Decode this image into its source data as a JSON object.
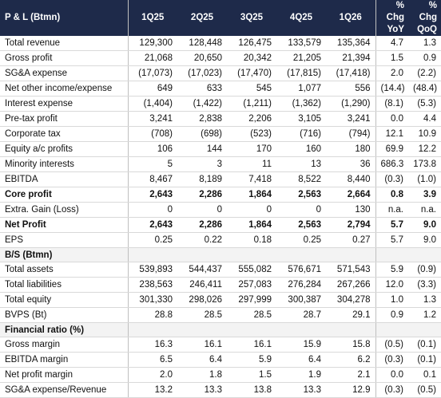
{
  "pl": {
    "title": "P & L (Btmn)",
    "columns": [
      "1Q25",
      "2Q25",
      "3Q25",
      "4Q25",
      "1Q26",
      "% Chg\nYoY",
      "% Chg\nQoQ"
    ],
    "rows": [
      {
        "label": "Total revenue",
        "values": [
          "129,300",
          "128,448",
          "126,475",
          "133,579",
          "135,364",
          "4.7",
          "1.3"
        ]
      },
      {
        "label": "Gross profit",
        "values": [
          "21,068",
          "20,650",
          "20,342",
          "21,205",
          "21,394",
          "1.5",
          "0.9"
        ]
      },
      {
        "label": "SG&A expense",
        "values": [
          "(17,073)",
          "(17,023)",
          "(17,470)",
          "(17,815)",
          "(17,418)",
          "2.0",
          "(2.2)"
        ]
      },
      {
        "label": "Net other income/expense",
        "values": [
          "649",
          "633",
          "545",
          "1,077",
          "556",
          "(14.4)",
          "(48.4)"
        ]
      },
      {
        "label": "Interest expense",
        "values": [
          "(1,404)",
          "(1,422)",
          "(1,211)",
          "(1,362)",
          "(1,290)",
          "(8.1)",
          "(5.3)"
        ]
      },
      {
        "label": "Pre-tax profit",
        "values": [
          "3,241",
          "2,838",
          "2,206",
          "3,105",
          "3,241",
          "0.0",
          "4.4"
        ]
      },
      {
        "label": "Corporate tax",
        "values": [
          "(708)",
          "(698)",
          "(523)",
          "(716)",
          "(794)",
          "12.1",
          "10.9"
        ]
      },
      {
        "label": "Equity a/c profits",
        "values": [
          "106",
          "144",
          "170",
          "160",
          "180",
          "69.9",
          "12.2"
        ]
      },
      {
        "label": "Minority interests",
        "values": [
          "5",
          "3",
          "11",
          "13",
          "36",
          "686.3",
          "173.8"
        ]
      },
      {
        "label": "EBITDA",
        "values": [
          "8,467",
          "8,189",
          "7,418",
          "8,522",
          "8,440",
          "(0.3)",
          "(1.0)"
        ]
      },
      {
        "label": "Core profit",
        "bold": true,
        "values": [
          "2,643",
          "2,286",
          "1,864",
          "2,563",
          "2,664",
          "0.8",
          "3.9"
        ]
      },
      {
        "label": "Extra. Gain (Loss)",
        "values": [
          "0",
          "0",
          "0",
          "0",
          "130",
          "n.a.",
          "n.a."
        ]
      },
      {
        "label": "Net Profit",
        "bold": true,
        "values": [
          "2,643",
          "2,286",
          "1,864",
          "2,563",
          "2,794",
          "5.7",
          "9.0"
        ]
      },
      {
        "label": "EPS",
        "values": [
          "0.25",
          "0.22",
          "0.18",
          "0.25",
          "0.27",
          "5.7",
          "9.0"
        ]
      }
    ]
  },
  "bs": {
    "title": "B/S (Btmn)",
    "rows": [
      {
        "label": "Total assets",
        "values": [
          "539,893",
          "544,437",
          "555,082",
          "576,671",
          "571,543",
          "5.9",
          "(0.9)"
        ]
      },
      {
        "label": "Total liabilities",
        "values": [
          "238,563",
          "246,411",
          "257,083",
          "276,284",
          "267,266",
          "12.0",
          "(3.3)"
        ]
      },
      {
        "label": "Total equity",
        "values": [
          "301,330",
          "298,026",
          "297,999",
          "300,387",
          "304,278",
          "1.0",
          "1.3"
        ]
      },
      {
        "label": "BVPS (Bt)",
        "values": [
          "28.8",
          "28.5",
          "28.5",
          "28.7",
          "29.1",
          "0.9",
          "1.2"
        ]
      }
    ]
  },
  "ratio": {
    "title": "Financial ratio (%)",
    "rows": [
      {
        "label": "Gross margin",
        "values": [
          "16.3",
          "16.1",
          "16.1",
          "15.9",
          "15.8",
          "(0.5)",
          "(0.1)"
        ]
      },
      {
        "label": "EBITDA margin",
        "values": [
          "6.5",
          "6.4",
          "5.9",
          "6.4",
          "6.2",
          "(0.3)",
          "(0.1)"
        ]
      },
      {
        "label": "Net profit margin",
        "values": [
          "2.0",
          "1.8",
          "1.5",
          "1.9",
          "2.1",
          "0.0",
          "0.1"
        ]
      },
      {
        "label": "SG&A expense/Revenue",
        "values": [
          "13.2",
          "13.3",
          "13.8",
          "13.3",
          "12.9",
          "(0.3)",
          "(0.5)"
        ]
      }
    ]
  }
}
